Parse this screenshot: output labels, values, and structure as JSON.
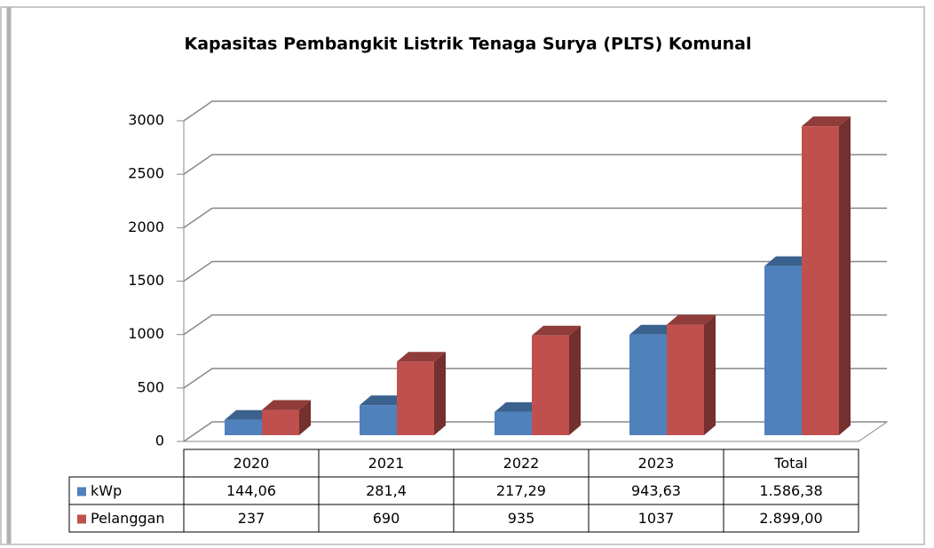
{
  "chart_data": {
    "type": "bar3d",
    "title": "Kapasitas Pembangkit Listrik Tenaga Surya (PLTS) Komunal",
    "categories": [
      "2020",
      "2021",
      "2022",
      "2023",
      "Total"
    ],
    "series": [
      {
        "name": "kWp",
        "color": "#4f81bd",
        "values": [
          144.06,
          281.4,
          217.29,
          943.63,
          1586.38
        ],
        "value_labels": [
          "144,06",
          "281,4",
          "217,29",
          "943,63",
          "1.586,38"
        ]
      },
      {
        "name": "Pelanggan",
        "color": "#c0504d",
        "values": [
          237,
          690,
          935,
          1037,
          2899
        ],
        "value_labels": [
          "237",
          "690",
          "935",
          "1037",
          "2.899,00"
        ]
      }
    ],
    "ylim": [
      0,
      3000
    ],
    "yticks": [
      0,
      500,
      1000,
      1500,
      2000,
      2500,
      3000
    ],
    "grid": true
  }
}
